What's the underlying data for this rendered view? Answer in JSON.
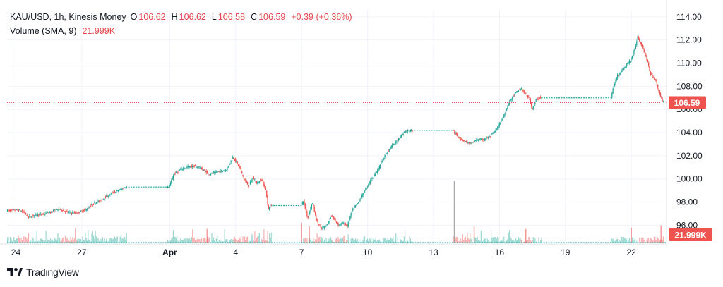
{
  "legend": {
    "symbol": "KAU/USD, 1h, Kinesis Money",
    "open_label": "O",
    "open": "106.62",
    "high_label": "H",
    "high": "106.62",
    "low_label": "L",
    "low": "106.58",
    "close_label": "C",
    "close": "106.59",
    "change": "+0.39 (+0.36%)",
    "volume_label": "Volume (SMA, 9)",
    "volume_value": "21.999K"
  },
  "brand": {
    "name": "TradingView"
  },
  "colors": {
    "up": "#26a69a",
    "down": "#ef5350",
    "price_line": "#ef5350",
    "grid": "#f0f3fa",
    "axis_text": "#131722"
  },
  "chart_data": {
    "type": "candlestick",
    "title": "KAU/USD, 1h, Kinesis Money",
    "ylim": [
      94.5,
      114.6
    ],
    "yticks": [
      "96.00",
      "98.00",
      "100.00",
      "102.00",
      "104.00",
      "106.00",
      "108.00",
      "110.00",
      "112.00",
      "114.00"
    ],
    "xticks": [
      {
        "label": "24",
        "day": 24
      },
      {
        "label": "27",
        "day": 27
      },
      {
        "label": "Apr",
        "day": 31,
        "bold": true
      },
      {
        "label": "4",
        "day": 34
      },
      {
        "label": "7",
        "day": 37
      },
      {
        "label": "10",
        "day": 40
      },
      {
        "label": "13",
        "day": 43
      },
      {
        "label": "16",
        "day": 46
      },
      {
        "label": "19",
        "day": 49
      },
      {
        "label": "22",
        "day": 52
      }
    ],
    "x_day_range": [
      23.6,
      53.6
    ],
    "last_price": "106.59",
    "last_price_value": 106.59,
    "volume_badge": "21.999K",
    "price_path": [
      [
        23.6,
        97.25
      ],
      [
        24.1,
        97.3
      ],
      [
        24.4,
        97.1
      ],
      [
        24.6,
        96.7
      ],
      [
        24.9,
        96.9
      ],
      [
        25.3,
        96.95
      ],
      [
        25.7,
        97.2
      ],
      [
        26.0,
        97.4
      ],
      [
        26.4,
        97.1
      ],
      [
        26.8,
        97.05
      ],
      [
        27.2,
        97.35
      ],
      [
        27.6,
        97.9
      ],
      [
        28.0,
        98.3
      ],
      [
        28.4,
        98.8
      ],
      [
        28.8,
        99.1
      ],
      [
        29.0,
        99.3
      ],
      [
        30.9,
        99.3
      ],
      [
        31.0,
        99.3
      ],
      [
        31.2,
        100.4
      ],
      [
        31.6,
        100.9
      ],
      [
        32.0,
        101.1
      ],
      [
        32.4,
        101.0
      ],
      [
        32.8,
        100.4
      ],
      [
        33.2,
        100.6
      ],
      [
        33.6,
        100.8
      ],
      [
        33.9,
        101.9
      ],
      [
        34.2,
        101.0
      ],
      [
        34.4,
        100.0
      ],
      [
        34.6,
        99.4
      ],
      [
        34.8,
        100.1
      ],
      [
        35.0,
        99.6
      ],
      [
        35.2,
        100.0
      ],
      [
        35.4,
        99.0
      ],
      [
        35.5,
        97.3
      ],
      [
        35.6,
        97.7
      ],
      [
        37.0,
        97.7
      ],
      [
        37.1,
        98.1
      ],
      [
        37.3,
        96.6
      ],
      [
        37.5,
        98.0
      ],
      [
        37.7,
        96.4
      ],
      [
        37.9,
        95.7
      ],
      [
        38.1,
        95.9
      ],
      [
        38.4,
        96.8
      ],
      [
        38.7,
        96.0
      ],
      [
        38.9,
        96.2
      ],
      [
        39.1,
        95.9
      ],
      [
        39.3,
        97.2
      ],
      [
        39.6,
        98.0
      ],
      [
        39.9,
        99.0
      ],
      [
        40.2,
        100.0
      ],
      [
        40.5,
        100.8
      ],
      [
        40.8,
        102.0
      ],
      [
        41.1,
        102.8
      ],
      [
        41.4,
        103.4
      ],
      [
        41.7,
        104.1
      ],
      [
        42.0,
        104.2
      ],
      [
        43.9,
        104.2
      ],
      [
        44.1,
        103.7
      ],
      [
        44.4,
        103.3
      ],
      [
        44.7,
        103.0
      ],
      [
        45.0,
        103.4
      ],
      [
        45.3,
        103.4
      ],
      [
        45.6,
        103.7
      ],
      [
        45.9,
        104.3
      ],
      [
        46.2,
        105.4
      ],
      [
        46.5,
        106.8
      ],
      [
        46.8,
        107.5
      ],
      [
        47.0,
        107.8
      ],
      [
        47.2,
        107.3
      ],
      [
        47.4,
        106.9
      ],
      [
        47.5,
        106.0
      ],
      [
        47.7,
        106.9
      ],
      [
        47.9,
        107.0
      ],
      [
        51.1,
        107.0
      ],
      [
        51.2,
        107.9
      ],
      [
        51.4,
        109.0
      ],
      [
        51.7,
        109.6
      ],
      [
        52.0,
        110.3
      ],
      [
        52.2,
        111.3
      ],
      [
        52.3,
        112.3
      ],
      [
        52.5,
        111.5
      ],
      [
        52.7,
        110.5
      ],
      [
        52.9,
        109.0
      ],
      [
        53.1,
        108.6
      ],
      [
        53.3,
        107.4
      ],
      [
        53.45,
        106.59
      ]
    ],
    "flat_segments": [
      [
        29.0,
        30.9
      ],
      [
        35.6,
        37.0
      ],
      [
        42.0,
        43.9
      ],
      [
        47.9,
        51.1
      ]
    ],
    "volume": {
      "ylim": [
        0,
        1
      ],
      "spike_days": [
        {
          "day": 43.95,
          "value": 1.0
        },
        {
          "day": 37.0,
          "value": 0.32
        },
        {
          "day": 53.35,
          "value": 0.28
        },
        {
          "day": 52.0,
          "value": 0.24
        },
        {
          "day": 37.35,
          "value": 0.26
        },
        {
          "day": 44.85,
          "value": 0.26
        },
        {
          "day": 47.2,
          "value": 0.22
        },
        {
          "day": 32.7,
          "value": 0.22
        }
      ]
    }
  }
}
